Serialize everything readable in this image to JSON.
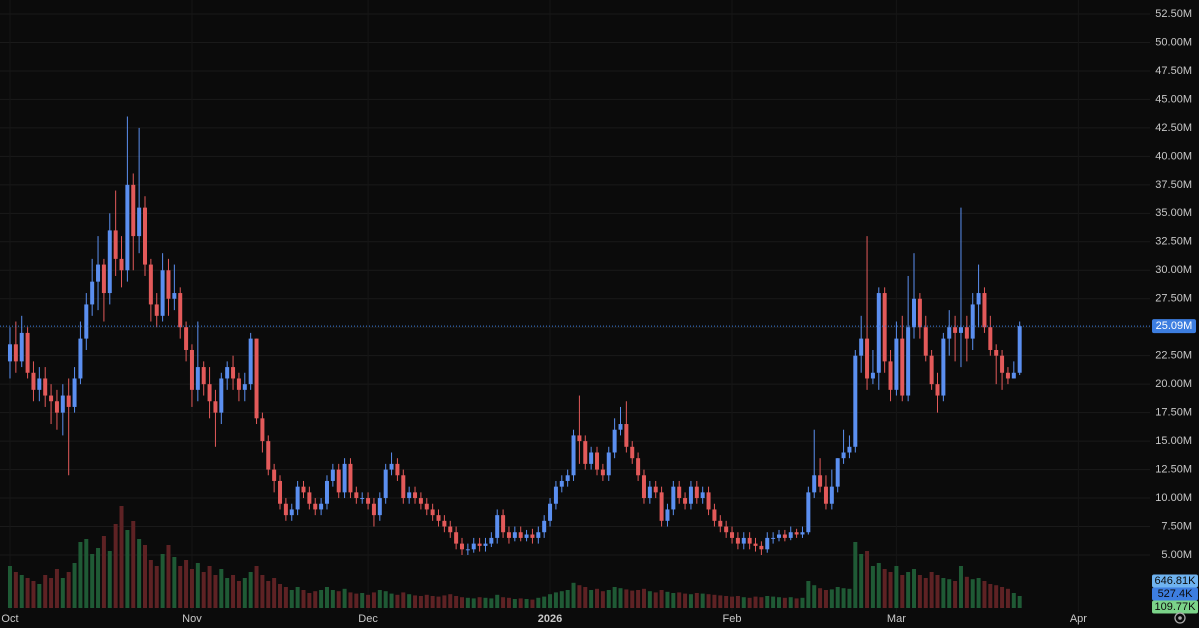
{
  "chart_data": {
    "type": "candlestick",
    "up_color": "#5b8ff0",
    "down_color": "#e35a5a",
    "volume_up_color": "#1f5a35",
    "volume_down_color": "#5e2224",
    "grid": true,
    "xlim": [
      -1.7,
      194.2
    ],
    "xticks": [
      {
        "value": 0,
        "label": "Oct"
      },
      {
        "value": 31,
        "label": "Nov"
      },
      {
        "value": 61,
        "label": "Dec"
      },
      {
        "value": 92,
        "label": "2026"
      },
      {
        "value": 123,
        "label": "Feb"
      },
      {
        "value": 151,
        "label": "Mar"
      },
      {
        "value": 182,
        "label": "Apr"
      }
    ],
    "ylim": [
      -1.41,
      53.73
    ],
    "yticks": [
      {
        "value": 5,
        "label": "5.00M"
      },
      {
        "value": 7.5,
        "label": "7.50M"
      },
      {
        "value": 10,
        "label": "10.00M"
      },
      {
        "value": 12.5,
        "label": "12.50M"
      },
      {
        "value": 15,
        "label": "15.00M"
      },
      {
        "value": 17.5,
        "label": "17.50M"
      },
      {
        "value": 20,
        "label": "20.00M"
      },
      {
        "value": 22.5,
        "label": "22.50M"
      },
      {
        "value": 25,
        "label": "25.00M"
      },
      {
        "value": 27.5,
        "label": "27.50M"
      },
      {
        "value": 30,
        "label": "30.00M"
      },
      {
        "value": 32.5,
        "label": "32.50M"
      },
      {
        "value": 35,
        "label": "35.00M"
      },
      {
        "value": 37.5,
        "label": "37.50M"
      },
      {
        "value": 40,
        "label": "40.00M"
      },
      {
        "value": 42.5,
        "label": "42.50M"
      },
      {
        "value": 45,
        "label": "45.00M"
      },
      {
        "value": 47.5,
        "label": "47.50M"
      },
      {
        "value": 50,
        "label": "50.00M"
      },
      {
        "value": 52.5,
        "label": "52.50M"
      }
    ],
    "last_price_label": "25.09M",
    "volume_lim": [
      0,
      2000
    ],
    "volume_badges": [
      {
        "value": 646.81,
        "label": "646.81K",
        "color": "#6fb3f0"
      },
      {
        "value": 527.4,
        "label": "527.4K",
        "color": "#3d7ee0"
      },
      {
        "value": 109.77,
        "label": "109.77K",
        "color": "#7bd389"
      }
    ],
    "open": [
      22.0,
      23.5,
      22.0,
      24.5,
      21.0,
      19.5,
      20.5,
      19.0,
      18.5,
      17.5,
      19.0,
      18.0,
      20.5,
      24.0,
      27.0,
      29.0,
      30.5,
      28.0,
      33.5,
      31.0,
      30.0,
      37.5,
      33.0,
      35.5,
      30.5,
      27.0,
      26.0,
      30.0,
      27.5,
      28.0,
      25.0,
      23.0,
      19.5,
      21.5,
      20.0,
      18.5,
      17.5,
      20.5,
      21.5,
      20.5,
      19.5,
      20.0,
      24.0,
      17.0,
      15.0,
      12.5,
      11.5,
      9.5,
      8.5,
      9.0,
      11.0,
      10.5,
      9.5,
      9.0,
      9.5,
      11.5,
      12.5,
      10.5,
      13.0,
      10.5,
      10.0,
      10.0,
      9.5,
      8.5,
      10.0,
      12.5,
      13.0,
      12.0,
      10.0,
      10.5,
      10.0,
      9.5,
      9.0,
      8.5,
      8.0,
      7.5,
      7.0,
      6.0,
      5.5,
      5.5,
      6.0,
      5.8,
      6.0,
      6.5,
      8.5,
      7.0,
      6.5,
      7.0,
      6.5,
      6.8,
      6.5,
      7.0,
      8.0,
      9.5,
      11.0,
      11.5,
      12.0,
      15.5,
      15.0,
      13.0,
      14.0,
      12.5,
      12.0,
      14.0,
      16.0,
      16.5,
      14.5,
      13.5,
      12.0,
      10.0,
      11.0,
      10.5,
      8.0,
      9.0,
      11.0,
      10.0,
      9.5,
      11.0,
      10.0,
      10.5,
      9.0,
      8.0,
      7.5,
      7.0,
      6.5,
      6.0,
      6.5,
      6.0,
      5.8,
      5.5,
      6.5,
      6.5,
      6.8,
      6.5,
      7.0,
      6.8,
      7.0,
      10.5,
      12.0,
      11.0,
      9.5,
      11.0,
      13.5,
      14.0,
      14.5,
      22.5,
      24.0,
      20.5,
      21.0,
      28.0,
      22.0,
      19.5,
      24.0,
      19.0,
      25.0,
      27.5,
      25.0,
      22.5,
      20.0,
      19.0,
      24.0,
      25.0,
      24.5,
      25.0,
      24.0,
      27.0,
      28.0,
      25.0,
      23.0,
      22.5,
      21.0,
      20.5,
      21.0
    ],
    "high": [
      25,
      25.5,
      26,
      25,
      22,
      21.5,
      21.5,
      20,
      19.5,
      20,
      20.5,
      21.5,
      25.5,
      28,
      31,
      33,
      31,
      35,
      37,
      33,
      43.5,
      38.5,
      42.5,
      36.5,
      31,
      28,
      31.5,
      31,
      30.5,
      28.5,
      25.5,
      23.5,
      25.5,
      22,
      21.5,
      19.5,
      21,
      22,
      22.5,
      21,
      21,
      24.5,
      24,
      17.5,
      15.5,
      13,
      12,
      10,
      9.5,
      11.5,
      11.5,
      11,
      10,
      10,
      12,
      13,
      13,
      13.5,
      13.5,
      11,
      10.5,
      10.5,
      10,
      10.5,
      13,
      14,
      13.5,
      12.5,
      11,
      11,
      10.5,
      10,
      9.5,
      9,
      8.5,
      8,
      7.5,
      6.5,
      6,
      6.5,
      6.5,
      6.5,
      7,
      9,
      9,
      7.5,
      7.5,
      7.5,
      7.2,
      7.3,
      7.5,
      8.5,
      10,
      11.5,
      12,
      12.5,
      16,
      19,
      15.5,
      14.5,
      14.5,
      13,
      14.5,
      17,
      18,
      18.5,
      15,
      14,
      12.5,
      11.5,
      11.5,
      11,
      9.5,
      11.5,
      11.5,
      10.5,
      11.5,
      11.5,
      11,
      11,
      9.5,
      8.5,
      8,
      7.5,
      7,
      7,
      7,
      6.5,
      6.2,
      7,
      7,
      7.2,
      7.2,
      7.5,
      7.3,
      7.5,
      11,
      16,
      13.5,
      12,
      12.5,
      13.5,
      16,
      15.5,
      23,
      26,
      33,
      23,
      28.5,
      28.5,
      23,
      25.5,
      26,
      29.5,
      31.5,
      28,
      26,
      23,
      21,
      24.5,
      26.5,
      26,
      35.5,
      26,
      28,
      30.5,
      28.5,
      26,
      23.5,
      23,
      21.5,
      22,
      25.5
    ],
    "low": [
      20.5,
      21,
      21.5,
      20.5,
      18.5,
      18.5,
      18,
      16.5,
      16,
      15.5,
      12,
      17.5,
      20,
      23,
      26,
      26.5,
      25.5,
      27,
      29.5,
      28.5,
      29,
      30,
      31.5,
      29.5,
      25.5,
      25,
      25.5,
      26,
      26.5,
      24,
      22,
      18,
      18.5,
      19,
      17,
      14.5,
      16.5,
      19.5,
      19.5,
      18.5,
      18.5,
      19.5,
      16.5,
      14,
      12,
      10.5,
      9,
      8,
      8,
      8.5,
      10,
      9,
      8.5,
      8.5,
      9,
      11,
      10,
      10,
      10,
      9.5,
      9.5,
      9,
      7.5,
      8,
      9.5,
      12,
      11.5,
      9.5,
      9.5,
      9.5,
      9,
      8.5,
      8,
      7.5,
      7,
      6.5,
      5.5,
      5,
      5,
      5.2,
      5.3,
      5.3,
      5.7,
      6,
      6.5,
      6,
      6.2,
      6.2,
      6.2,
      6,
      6,
      6.5,
      7.5,
      9,
      10.5,
      11,
      11.5,
      13,
      12.5,
      12.5,
      12,
      11.5,
      11.5,
      13.5,
      15.5,
      14,
      13,
      11.5,
      9.5,
      9.5,
      10,
      7.5,
      7.5,
      8.5,
      9.5,
      9,
      9,
      9.5,
      9.5,
      8.5,
      7.5,
      7,
      6.5,
      6,
      5.5,
      5.5,
      5.5,
      5.3,
      5,
      5.2,
      6,
      6.2,
      6.2,
      6.3,
      6.5,
      6.5,
      6.8,
      10,
      10.5,
      9,
      9,
      10.5,
      13,
      13.5,
      14,
      21,
      19.5,
      20,
      19.5,
      21,
      18.5,
      19,
      18.5,
      18.5,
      24,
      24,
      22,
      19.5,
      17.5,
      18.5,
      22.5,
      22,
      21.5,
      22,
      23,
      25,
      24.5,
      22.5,
      20,
      19.5,
      20,
      20.5,
      20.8
    ],
    "close": [
      23.5,
      22.0,
      24.5,
      21.0,
      19.5,
      20.5,
      19.0,
      18.5,
      17.5,
      19.0,
      18.0,
      20.5,
      24.0,
      27.0,
      29.0,
      30.5,
      28.0,
      33.5,
      31.0,
      30.0,
      37.5,
      33.0,
      35.5,
      30.5,
      27.0,
      26.0,
      30.0,
      27.5,
      28.0,
      25.0,
      23.0,
      19.5,
      21.5,
      20.0,
      18.5,
      17.5,
      20.5,
      21.5,
      20.5,
      19.5,
      20.0,
      24.0,
      17.0,
      15.0,
      12.5,
      11.5,
      9.5,
      8.5,
      9.0,
      11.0,
      10.5,
      9.5,
      9.0,
      9.5,
      11.5,
      12.5,
      10.5,
      13.0,
      10.5,
      10.0,
      10.0,
      9.5,
      8.5,
      10.0,
      12.5,
      13.0,
      12.0,
      10.0,
      10.5,
      10.0,
      9.5,
      9.0,
      8.5,
      8.0,
      7.5,
      7.0,
      6.0,
      5.5,
      5.5,
      6.0,
      5.8,
      6.0,
      6.5,
      8.5,
      7.0,
      6.5,
      7.0,
      6.5,
      6.8,
      6.5,
      7.0,
      8.0,
      9.5,
      11.0,
      11.5,
      12.0,
      15.5,
      15.0,
      13.0,
      14.0,
      12.5,
      12.0,
      14.0,
      16.0,
      16.5,
      14.5,
      13.5,
      12.0,
      10.0,
      11.0,
      10.5,
      8.0,
      9.0,
      11.0,
      10.0,
      9.5,
      11.0,
      10.0,
      10.5,
      9.0,
      8.0,
      7.5,
      7.0,
      6.5,
      6.0,
      6.5,
      6.0,
      5.8,
      5.5,
      6.5,
      6.5,
      6.8,
      6.5,
      7.0,
      6.8,
      7.0,
      10.5,
      12.0,
      11.0,
      9.5,
      11.0,
      13.5,
      14.0,
      14.5,
      22.5,
      24.0,
      20.5,
      21.0,
      28.0,
      22.0,
      19.5,
      24.0,
      19.0,
      25.0,
      27.5,
      25.0,
      22.5,
      20.0,
      19.0,
      24.0,
      25.0,
      24.5,
      25.0,
      24.0,
      27.0,
      28.0,
      25.0,
      23.0,
      22.5,
      21.0,
      20.5,
      21.0,
      25.09
    ],
    "volume": [
      700,
      600,
      550,
      500,
      450,
      400,
      550,
      500,
      650,
      500,
      600,
      750,
      1100,
      1150,
      900,
      1000,
      1200,
      950,
      1400,
      1700,
      1300,
      1450,
      1150,
      1050,
      800,
      700,
      900,
      1050,
      850,
      700,
      800,
      650,
      750,
      600,
      700,
      550,
      650,
      500,
      550,
      450,
      500,
      600,
      700,
      550,
      450,
      500,
      400,
      350,
      300,
      350,
      300,
      250,
      280,
      300,
      350,
      300,
      280,
      320,
      260,
      240,
      250,
      220,
      260,
      300,
      280,
      240,
      220,
      260,
      230,
      210,
      200,
      220,
      200,
      190,
      210,
      230,
      200,
      180,
      170,
      160,
      180,
      170,
      160,
      220,
      180,
      170,
      150,
      160,
      150,
      140,
      170,
      190,
      230,
      260,
      280,
      300,
      420,
      380,
      350,
      300,
      320,
      280,
      300,
      350,
      330,
      310,
      290,
      300,
      320,
      280,
      260,
      300,
      270,
      250,
      260,
      240,
      230,
      250,
      240,
      230,
      220,
      210,
      200,
      190,
      200,
      180,
      170,
      190,
      180,
      200,
      190,
      180,
      170,
      180,
      160,
      170,
      450,
      380,
      330,
      300,
      310,
      350,
      330,
      320,
      1100,
      900,
      950,
      700,
      750,
      650,
      600,
      700,
      550,
      600,
      650,
      550,
      500,
      600,
      550,
      500,
      480,
      450,
      700,
      520,
      480,
      500,
      450,
      400,
      380,
      350,
      320,
      250,
      200
    ]
  }
}
